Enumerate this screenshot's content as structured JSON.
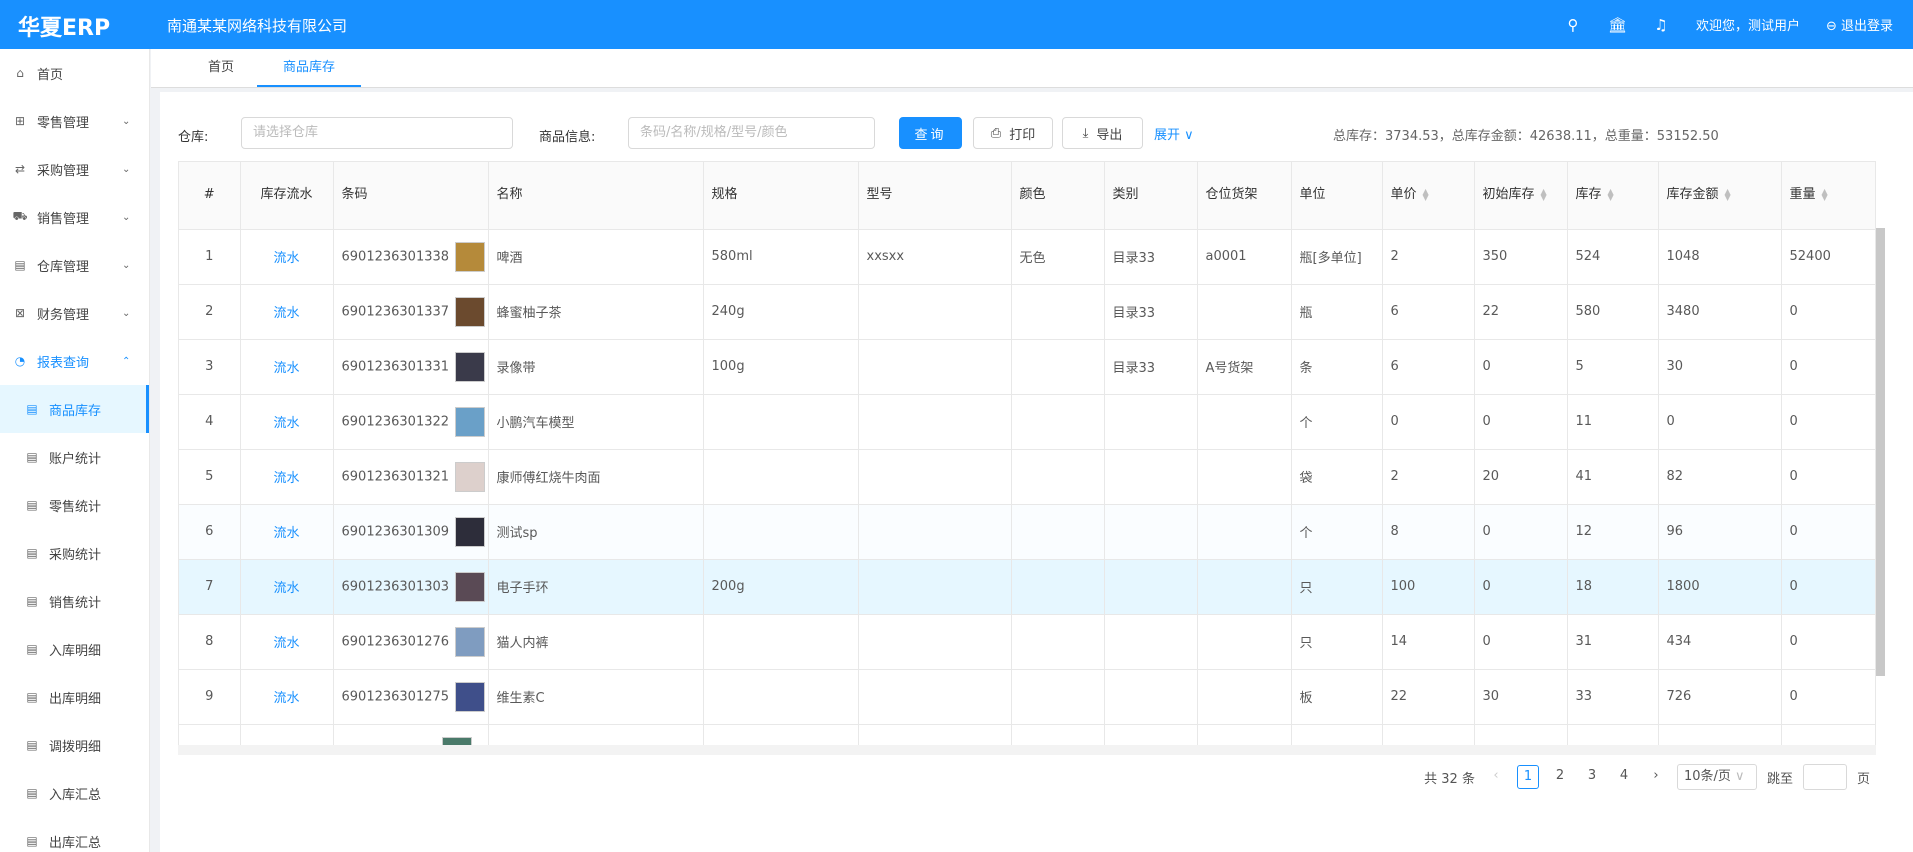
{
  "header": {
    "logo": "华夏ERP",
    "company": "南通某某网络科技有限公司",
    "welcome": "欢迎您，测试用户",
    "logout": "退出登录",
    "brand_color": "#1890ff"
  },
  "sidebar": {
    "items": [
      {
        "label": "首页",
        "icon": "home-icon",
        "glyph": "⌂",
        "chevron": ""
      },
      {
        "label": "零售管理",
        "icon": "gift-icon",
        "glyph": "⊞",
        "chevron": "⌄"
      },
      {
        "label": "采购管理",
        "icon": "swap-icon",
        "glyph": "⇄",
        "chevron": "⌄"
      },
      {
        "label": "销售管理",
        "icon": "cart-icon",
        "glyph": "⛟",
        "chevron": "⌄"
      },
      {
        "label": "仓库管理",
        "icon": "warehouse-icon",
        "glyph": "▤",
        "chevron": "⌄"
      },
      {
        "label": "财务管理",
        "icon": "finance-icon",
        "glyph": "⊠",
        "chevron": "⌄"
      },
      {
        "label": "报表查询",
        "icon": "pie-chart-icon",
        "glyph": "◔",
        "chevron": "⌃",
        "open": true
      }
    ],
    "subitems": [
      "商品库存",
      "账户统计",
      "零售统计",
      "采购统计",
      "销售统计",
      "入库明细",
      "出库明细",
      "调拨明细",
      "入库汇总",
      "出库汇总"
    ],
    "active_sub": 0
  },
  "tabs": [
    {
      "label": "首页"
    },
    {
      "label": "商品库存",
      "active": true
    }
  ],
  "filters": {
    "warehouse_label": "仓库:",
    "warehouse_placeholder": "请选择仓库",
    "goods_label": "商品信息:",
    "goods_placeholder": "条码/名称/规格/型号/颜色",
    "query": "查询",
    "print": "打印",
    "export": "导出",
    "expand": "展开"
  },
  "summary": "总库存：3734.53，总库存金额：42638.11，总重量：53152.50",
  "table": {
    "columns": [
      "#",
      "库存流水",
      "条码",
      "名称",
      "规格",
      "型号",
      "颜色",
      "类别",
      "仓位货架",
      "单位",
      "单价",
      "初始库存",
      "库存",
      "库存金额",
      "重量"
    ],
    "sortable": [
      10,
      11,
      12,
      13,
      14
    ],
    "rows": [
      [
        "1",
        "流水",
        "6901236301338",
        "啤酒",
        "580ml",
        "xxsxx",
        "无色",
        "目录33",
        "a0001",
        "瓶[多单位]",
        "2",
        "350",
        "524",
        "1048",
        "52400"
      ],
      [
        "2",
        "流水",
        "6901236301337",
        "蜂蜜柚子茶",
        "240g",
        "",
        "",
        "目录33",
        "",
        "瓶",
        "6",
        "22",
        "580",
        "3480",
        "0"
      ],
      [
        "3",
        "流水",
        "6901236301331",
        "录像带",
        "100g",
        "",
        "",
        "目录33",
        "A号货架",
        "条",
        "6",
        "0",
        "5",
        "30",
        "0"
      ],
      [
        "4",
        "流水",
        "6901236301322",
        "小鹏汽车模型",
        "",
        "",
        "",
        "",
        "",
        "个",
        "0",
        "0",
        "11",
        "0",
        "0"
      ],
      [
        "5",
        "流水",
        "6901236301321",
        "康师傅红烧牛肉面",
        "",
        "",
        "",
        "",
        "",
        "袋",
        "2",
        "20",
        "41",
        "82",
        "0"
      ],
      [
        "6",
        "流水",
        "6901236301309",
        "测试sp",
        "",
        "",
        "",
        "",
        "",
        "个",
        "8",
        "0",
        "12",
        "96",
        "0"
      ],
      [
        "7",
        "流水",
        "6901236301303",
        "电子手环",
        "200g",
        "",
        "",
        "",
        "",
        "只",
        "100",
        "0",
        "18",
        "1800",
        "0"
      ],
      [
        "8",
        "流水",
        "6901236301276",
        "猫人内裤",
        "",
        "",
        "",
        "",
        "",
        "只",
        "14",
        "0",
        "31",
        "434",
        "0"
      ],
      [
        "9",
        "流水",
        "6901236301275",
        "维生素C",
        "",
        "",
        "",
        "",
        "",
        "板",
        "22",
        "30",
        "33",
        "726",
        "0"
      ]
    ],
    "thumb_colors": [
      "#b58a3a",
      "#6b4a2e",
      "#3a3a4a",
      "#6aa0c8",
      "#ddd0cc",
      "#2d2d3a",
      "#5a4a55",
      "#7f9cc0",
      "#3f4f8a"
    ],
    "hover_row": 6,
    "stripe_row": 5
  },
  "pagination": {
    "total": "共 32 条",
    "pages": [
      "1",
      "2",
      "3",
      "4"
    ],
    "current": "1",
    "page_size": "10条/页",
    "jump_label": "跳至",
    "page_suffix": "页"
  }
}
